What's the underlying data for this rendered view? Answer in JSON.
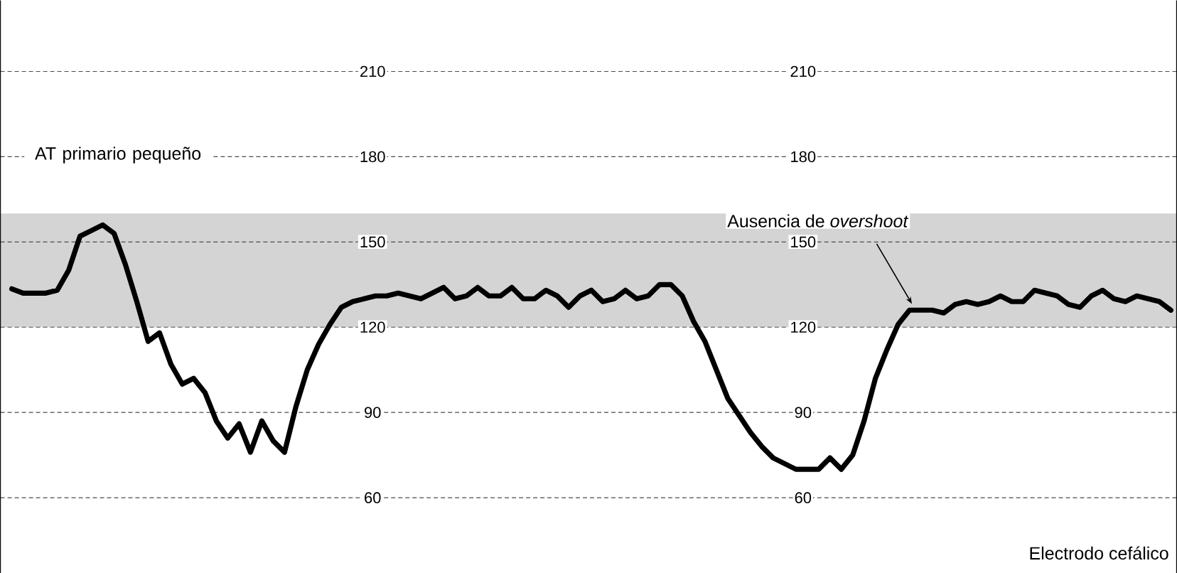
{
  "chart_data": {
    "type": "line",
    "categories": [
      null,
      null,
      null,
      null,
      null,
      null,
      null,
      null,
      null,
      null,
      null,
      null,
      null,
      null,
      null,
      null,
      null,
      null,
      null,
      null,
      null,
      null,
      null,
      null,
      null,
      null,
      null,
      null,
      null,
      null,
      null,
      null,
      null,
      null,
      null,
      null,
      null,
      null,
      null,
      null,
      null,
      null,
      null,
      null,
      null,
      null,
      null,
      null,
      null,
      null,
      null,
      null,
      null,
      null,
      null,
      null,
      null,
      null,
      null,
      null,
      null,
      null,
      null,
      null,
      null,
      null,
      null,
      null,
      null,
      null,
      null,
      null,
      null,
      null,
      null,
      null,
      null,
      null,
      null,
      null,
      null,
      null,
      null,
      null,
      null,
      null,
      null,
      null,
      null,
      null,
      null,
      null,
      null,
      null,
      null,
      null,
      null,
      null,
      null,
      null,
      null,
      null,
      null
    ],
    "series": [
      {
        "color": "#000000",
        "values": [
          133.5,
          132,
          132,
          132,
          133,
          140,
          152,
          154,
          156,
          153,
          142,
          129,
          115,
          118,
          107,
          100,
          102,
          97,
          87,
          81,
          86,
          76,
          87,
          80,
          76,
          92,
          105,
          114,
          121,
          127,
          129,
          130,
          131,
          131,
          132,
          131,
          130,
          132,
          134,
          130,
          131,
          134,
          131,
          131,
          134,
          130,
          130,
          133,
          131,
          127,
          131,
          133,
          129,
          130,
          133,
          130,
          131,
          135,
          135,
          131,
          122,
          115,
          105,
          95,
          89,
          83,
          78,
          74,
          72,
          70,
          70,
          70,
          74,
          70,
          75,
          87,
          102,
          112,
          121,
          126,
          126,
          126,
          125,
          128,
          129,
          128,
          129,
          131,
          129,
          129,
          133,
          132,
          131,
          128,
          127,
          131,
          133,
          130,
          129,
          131,
          130,
          129,
          126
        ]
      }
    ],
    "ylim": [
      33.5,
      235
    ],
    "yticks": [
      60,
      90,
      120,
      150,
      180,
      210
    ],
    "y2lim": [
      33.5,
      235
    ],
    "y2ticks": [
      60,
      90,
      120,
      150,
      180,
      210
    ],
    "grid": "y",
    "tick_labels": "y",
    "line_style": "solid",
    "marker": "none",
    "bands": [
      {
        "axis": "y",
        "from": 120,
        "to": 160,
        "color": "#d4d4d4"
      }
    ],
    "annotations": [
      "AT primario pequeño",
      "Ausencia de *overshoot*",
      "Electrodo cefálico"
    ]
  }
}
